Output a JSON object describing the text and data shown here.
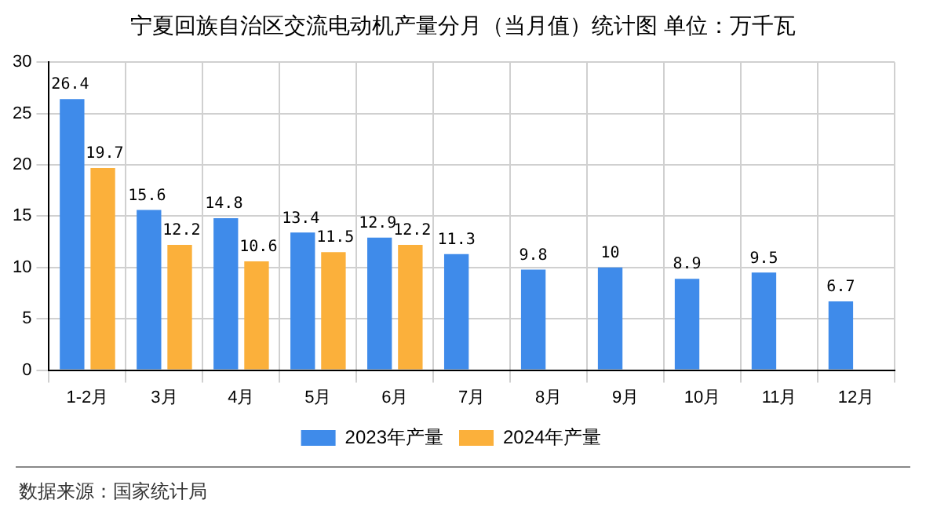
{
  "chart_data": {
    "type": "bar",
    "title": "宁夏回族自治区交流电动机产量分月（当月值）统计图 单位：万千瓦",
    "categories": [
      "1-2月",
      "3月",
      "4月",
      "5月",
      "6月",
      "7月",
      "8月",
      "9月",
      "10月",
      "11月",
      "12月"
    ],
    "series": [
      {
        "name": "2023年产量",
        "color": "#3f8bea",
        "values": [
          26.4,
          15.6,
          14.8,
          13.4,
          12.9,
          11.3,
          9.8,
          10,
          8.9,
          9.5,
          6.7
        ]
      },
      {
        "name": "2024年产量",
        "color": "#fbb03b",
        "values": [
          19.7,
          12.2,
          10.6,
          11.5,
          12.2,
          null,
          null,
          null,
          null,
          null,
          null
        ]
      }
    ],
    "ylim": [
      0,
      30
    ],
    "yticks": [
      0,
      5,
      10,
      15,
      20,
      25,
      30
    ],
    "grid": true,
    "legend": "bottom",
    "data_labels": true,
    "annotations": [
      "数据来源：国家统计局"
    ]
  }
}
